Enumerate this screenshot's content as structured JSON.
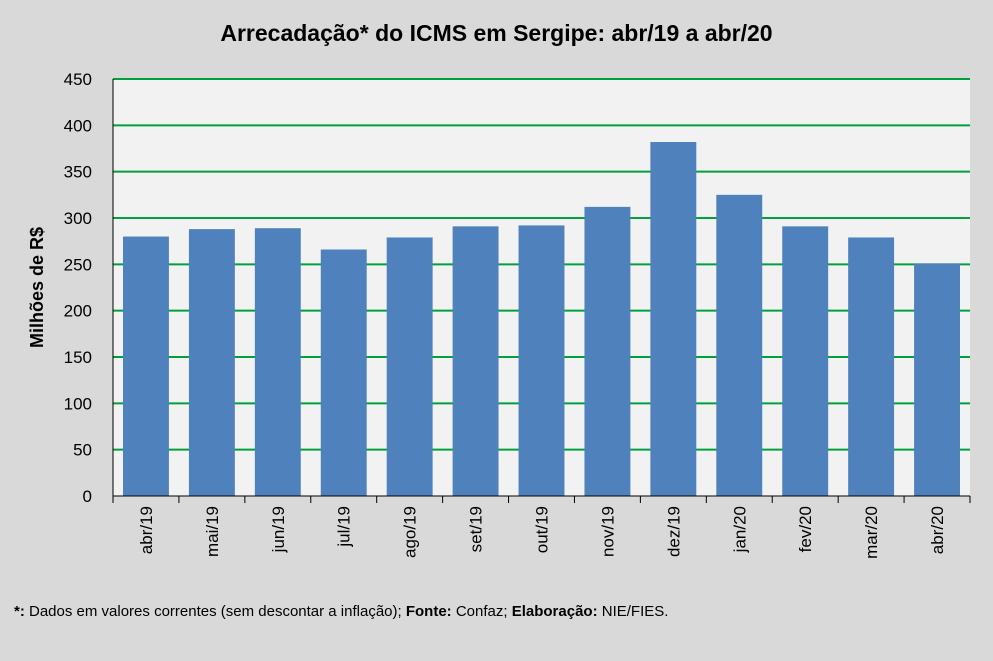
{
  "chart_data": {
    "type": "bar",
    "title": "Arrecadação* do ICMS em Sergipe: abr/19 a abr/20",
    "xlabel": "",
    "ylabel": "Milhões de R$",
    "ylim": [
      0,
      450
    ],
    "yticks": [
      0,
      50,
      100,
      150,
      200,
      250,
      300,
      350,
      400,
      450
    ],
    "grid": true,
    "categories": [
      "abr/19",
      "mai/19",
      "jun/19",
      "jul/19",
      "ago/19",
      "set/19",
      "out/19",
      "nov/19",
      "dez/19",
      "jan/20",
      "fev/20",
      "mar/20",
      "abr/20"
    ],
    "values": [
      280,
      288,
      289,
      266,
      279,
      291,
      292,
      312,
      382,
      325,
      291,
      279,
      251
    ],
    "colors": {
      "bar": "#4f81bd",
      "grid": "#00a03c",
      "plot_bg": "#f2f2f2",
      "background": "#d9d9d9"
    }
  },
  "footnote": {
    "mark": "*:",
    "text1": " Dados em valores correntes (sem descontar a inflação); ",
    "source_label": "Fonte:",
    "source": " Confaz; ",
    "elab_label": "Elaboração:",
    "elab": " NIE/FIES."
  }
}
